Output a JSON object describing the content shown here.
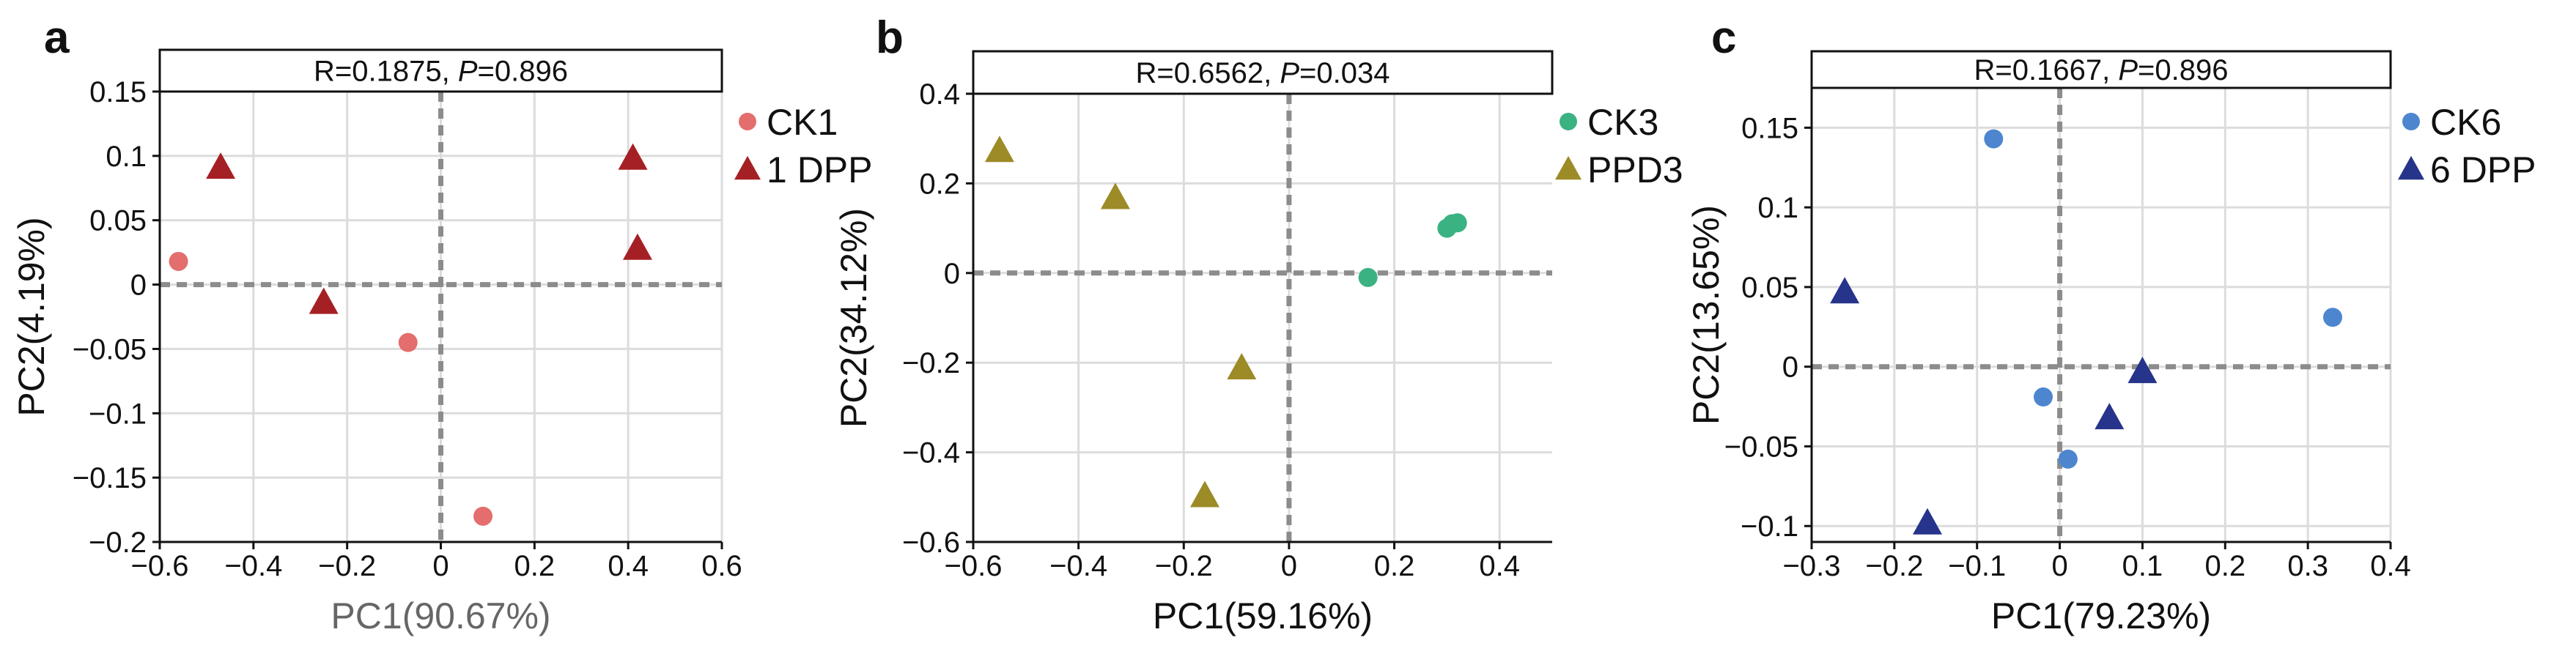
{
  "chart_data": [
    {
      "type": "scatter",
      "panel_label": "a",
      "stat_text": {
        "r": "R=0.1875, ",
        "p_symbol": "P",
        "p_rest": "=0.896"
      },
      "xlabel": "PC1(90.67%)",
      "ylabel": "PC2(4.19%)",
      "xlim": [
        -0.6,
        0.6
      ],
      "ylim": [
        -0.2,
        0.15
      ],
      "xticks": [
        -0.6,
        -0.4,
        -0.2,
        0,
        0.2,
        0.4,
        0.6
      ],
      "xtick_labels": [
        "−0.6",
        "−0.4",
        "−0.2",
        "0",
        "0.2",
        "0.4",
        "0.6"
      ],
      "yticks": [
        -0.2,
        -0.15,
        -0.1,
        -0.05,
        0,
        0.05,
        0.1,
        0.15
      ],
      "ytick_labels": [
        "−0.2",
        "−0.15",
        "−0.1",
        "−0.05",
        "0",
        "0.05",
        "0.1",
        "0.15"
      ],
      "grid": true,
      "legend_position": "right",
      "series": [
        {
          "name": "CK1",
          "marker": "circle",
          "color": "#e46d6d",
          "points": [
            [
              -0.56,
              0.018
            ],
            [
              -0.07,
              -0.045
            ],
            [
              0.09,
              -0.18
            ]
          ]
        },
        {
          "name": "1 DPP",
          "marker": "triangle",
          "color": "#a52024",
          "points": [
            [
              -0.47,
              0.09
            ],
            [
              -0.25,
              -0.015
            ],
            [
              0.41,
              0.097
            ],
            [
              0.42,
              0.027
            ]
          ]
        }
      ]
    },
    {
      "type": "scatter",
      "panel_label": "b",
      "stat_text": {
        "r": "R=0.6562, ",
        "p_symbol": "P",
        "p_rest": "=0.034"
      },
      "xlabel": "PC1(59.16%)",
      "ylabel": "PC2(34.12%)",
      "xlim": [
        -0.6,
        0.5
      ],
      "ylim": [
        -0.6,
        0.4
      ],
      "xticks": [
        -0.6,
        -0.4,
        -0.2,
        0,
        0.2,
        0.4
      ],
      "xtick_labels": [
        "−0.6",
        "−0.4",
        "−0.2",
        "0",
        "0.2",
        "0.4"
      ],
      "yticks": [
        -0.6,
        -0.4,
        -0.2,
        0,
        0.2,
        0.4
      ],
      "ytick_labels": [
        "−0.6",
        "−0.4",
        "−0.2",
        "0",
        "0.2",
        "0.4"
      ],
      "grid": true,
      "legend_position": "right",
      "series": [
        {
          "name": "CK3",
          "marker": "circle",
          "color": "#3bb281",
          "points": [
            [
              0.15,
              -0.01
            ],
            [
              0.3,
              0.1
            ],
            [
              0.31,
              0.11
            ],
            [
              0.32,
              0.112
            ]
          ]
        },
        {
          "name": "PPD3",
          "marker": "triangle",
          "color": "#9c8b26",
          "points": [
            [
              -0.55,
              0.27
            ],
            [
              -0.33,
              0.165
            ],
            [
              -0.09,
              -0.215
            ],
            [
              -0.16,
              -0.5
            ]
          ]
        }
      ]
    },
    {
      "type": "scatter",
      "panel_label": "c",
      "stat_text": {
        "r": "R=0.1667, ",
        "p_symbol": "P",
        "p_rest": "=0.896"
      },
      "xlabel": "PC1(79.23%)",
      "ylabel": "PC2(13.65%)",
      "xlim": [
        -0.3,
        0.4
      ],
      "ylim": [
        -0.11,
        0.175
      ],
      "xticks": [
        -0.3,
        -0.2,
        -0.1,
        0,
        0.1,
        0.2,
        0.3,
        0.4
      ],
      "xtick_labels": [
        "−0.3",
        "−0.2",
        "−0.1",
        "0",
        "0.1",
        "0.2",
        "0.3",
        "0.4"
      ],
      "yticks": [
        -0.1,
        -0.05,
        0,
        0.05,
        0.1,
        0.15
      ],
      "ytick_labels": [
        "−0.1",
        "−0.05",
        "0",
        "0.05",
        "0.1",
        "0.15"
      ],
      "grid": true,
      "legend_position": "right",
      "series": [
        {
          "name": "CK6",
          "marker": "circle",
          "color": "#4d86cf",
          "points": [
            [
              -0.08,
              0.143
            ],
            [
              -0.02,
              -0.019
            ],
            [
              0.01,
              -0.058
            ],
            [
              0.33,
              0.031
            ]
          ]
        },
        {
          "name": "6 DPP",
          "marker": "triangle",
          "color": "#27348b",
          "points": [
            [
              -0.26,
              0.046
            ],
            [
              -0.16,
              -0.099
            ],
            [
              0.06,
              -0.033
            ],
            [
              0.1,
              -0.004
            ]
          ]
        }
      ]
    }
  ]
}
